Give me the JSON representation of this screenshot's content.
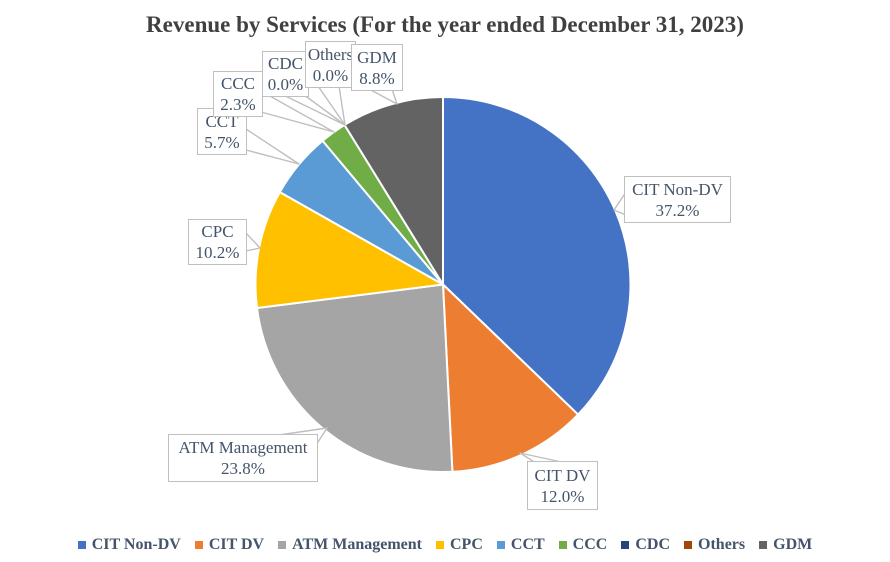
{
  "chart_data": {
    "type": "pie",
    "title": "Revenue by Services (For the year ended December 31, 2023)",
    "categories": [
      "CIT Non-DV",
      "CIT DV",
      "ATM Management",
      "CPC",
      "CCT",
      "CCC",
      "CDC",
      "Others",
      "GDM"
    ],
    "values": [
      37.2,
      12.0,
      23.8,
      10.2,
      5.7,
      2.3,
      0.0,
      0.0,
      8.8
    ],
    "unit": "%",
    "colors": [
      "#4472C4",
      "#ED7D31",
      "#A5A5A5",
      "#FFC000",
      "#5B9BD5",
      "#70AD47",
      "#264478",
      "#9E480E",
      "#636363"
    ],
    "labels": [
      {
        "name": "CIT Non-DV",
        "value_label": "37.2%"
      },
      {
        "name": "CIT DV",
        "value_label": "12.0%"
      },
      {
        "name": "ATM Management",
        "value_label": "23.8%"
      },
      {
        "name": "CPC",
        "value_label": "10.2%"
      },
      {
        "name": "CCT",
        "value_label": "5.7%"
      },
      {
        "name": "CCC",
        "value_label": "2.3%"
      },
      {
        "name": "CDC",
        "value_label": "0.0%"
      },
      {
        "name": "Others",
        "value_label": "0.0%"
      },
      {
        "name": "GDM",
        "value_label": "8.8%"
      }
    ],
    "start_angle_deg": 0,
    "direction": "clockwise",
    "legend_position": "bottom",
    "slice_border_color": "#FFFFFF",
    "callout_border_color": "#BFBFBF",
    "label_text_color": "#44546A",
    "title_color": "#404040"
  }
}
